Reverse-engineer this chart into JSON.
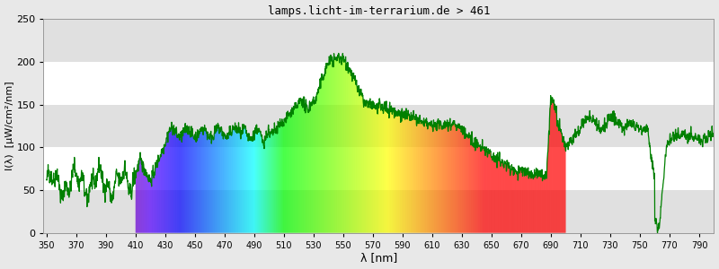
{
  "title": "lamps.licht-im-terrarium.de > 461",
  "xlabel": "λ [nm]",
  "ylabel": "I(λ)  [µW/cm²/nm]",
  "xlim": [
    348,
    800
  ],
  "ylim": [
    0,
    250
  ],
  "yticks": [
    0,
    50,
    100,
    150,
    200,
    250
  ],
  "xticks": [
    350,
    370,
    390,
    410,
    430,
    450,
    470,
    490,
    510,
    530,
    550,
    570,
    590,
    610,
    630,
    650,
    670,
    690,
    710,
    730,
    750,
    770,
    790
  ],
  "fig_bg": "#e8e8e8",
  "plot_bg": "#ffffff",
  "band_color": "#e0e0e0",
  "line_color": "#008000",
  "vis_start": 410,
  "vis_end": 700,
  "figsize": [
    8.0,
    3.0
  ],
  "dpi": 100
}
